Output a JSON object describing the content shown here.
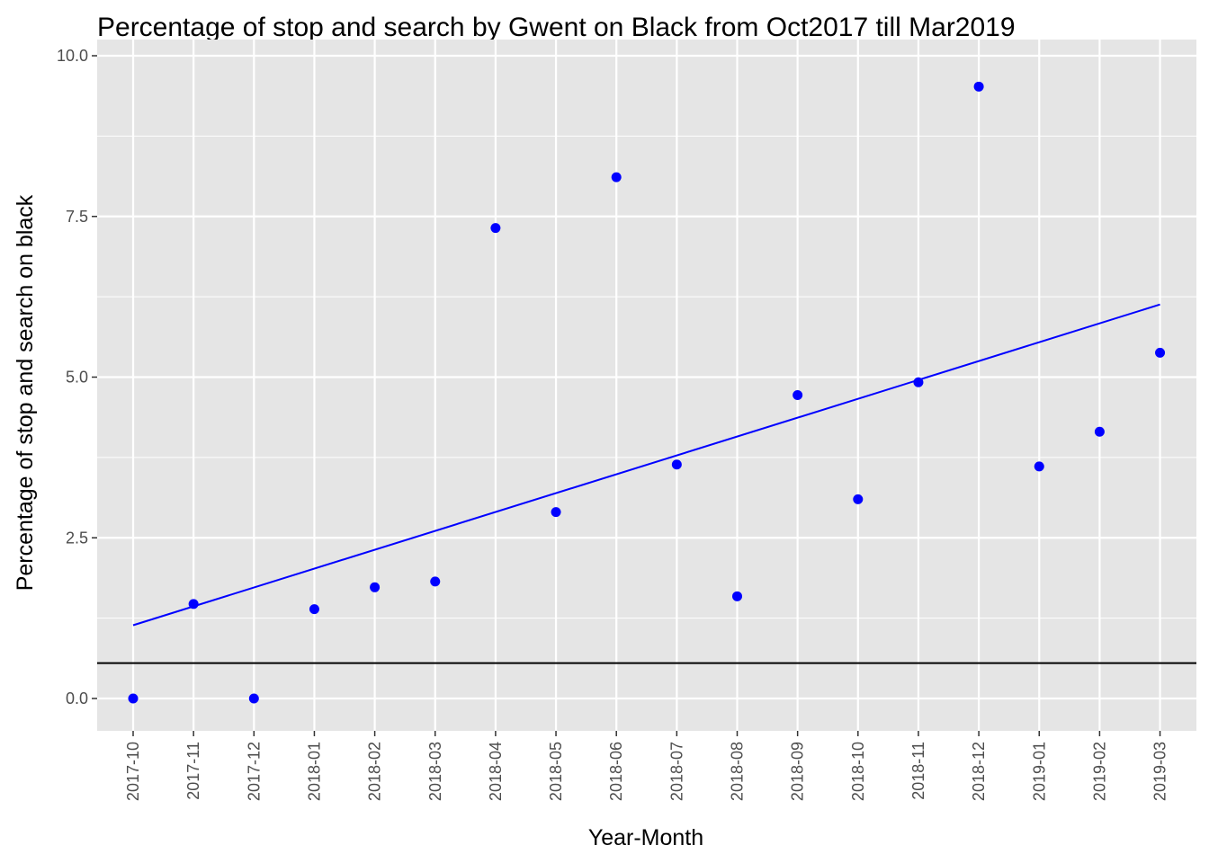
{
  "chart_data": {
    "type": "scatter",
    "title": "Percentage of stop and search by Gwent on Black from Oct2017 till Mar2019",
    "xlabel": "Year-Month",
    "ylabel": "Percentage of stop and search on black",
    "categories": [
      "2017-10",
      "2017-11",
      "2017-12",
      "2018-01",
      "2018-02",
      "2018-03",
      "2018-04",
      "2018-05",
      "2018-06",
      "2018-07",
      "2018-08",
      "2018-09",
      "2018-10",
      "2018-11",
      "2018-12",
      "2019-01",
      "2019-02",
      "2019-03"
    ],
    "values": [
      0.0,
      1.47,
      0.0,
      1.39,
      1.73,
      1.82,
      7.32,
      2.9,
      8.11,
      3.64,
      1.59,
      4.72,
      3.1,
      4.92,
      9.52,
      3.61,
      4.15,
      5.38
    ],
    "ylim": [
      -0.45,
      10.0
    ],
    "yticks": [
      0.0,
      2.5,
      5.0,
      7.5,
      10.0
    ],
    "ytick_labels": [
      "0.0",
      "2.5",
      "5.0",
      "7.5",
      "10.0"
    ],
    "trend_line": {
      "start": 1.14,
      "end": 6.13
    },
    "reference_line": 0.55,
    "colors": {
      "points": "#0000ff",
      "trend_line": "#0000ff",
      "reference_line": "#000000",
      "panel_background": "#e5e5e5",
      "grid": "#ffffff"
    },
    "grid": true,
    "legend": "none"
  }
}
